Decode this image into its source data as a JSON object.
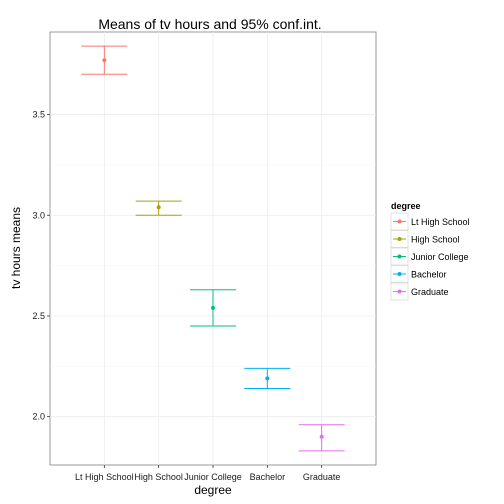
{
  "chart_data": {
    "type": "errorbar",
    "title": "Means of tv hours and 95% conf.int.",
    "xlabel": "degree",
    "ylabel": "tv hours means",
    "categories": [
      "Lt High School",
      "High School",
      "Junior College",
      "Bachelor",
      "Graduate"
    ],
    "means": [
      3.77,
      3.04,
      2.54,
      2.19,
      1.9
    ],
    "lower": [
      3.7,
      3.0,
      2.45,
      2.14,
      1.83
    ],
    "upper": [
      3.84,
      3.07,
      2.63,
      2.24,
      1.96
    ],
    "colors": [
      "#F8766D",
      "#A3A500",
      "#00BF7D",
      "#00B0F6",
      "#E76BF3"
    ],
    "yticks": [
      2.0,
      2.5,
      3.0,
      3.5
    ],
    "ytick_labels": [
      "2.0",
      "2.5",
      "3.0",
      "3.5"
    ],
    "ylim": [
      1.76,
      3.91
    ],
    "grid": true,
    "legend": {
      "title": "degree",
      "position": "right",
      "entries": [
        "Lt High School",
        "High School",
        "Junior College",
        "Bachelor",
        "Graduate"
      ]
    }
  }
}
